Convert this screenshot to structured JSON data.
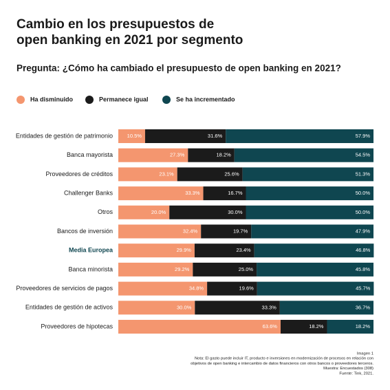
{
  "chart_data": {
    "type": "stacked_bar_horizontal",
    "title": [
      "Cambio en los presupuestos de",
      "open banking en 2021 por segmento"
    ],
    "subtitle": "Pregunta: ¿Cómo ha cambiado el presupuesto de open banking en 2021?",
    "categories": [
      "Entidades de gestión de patrimonio",
      "Banca mayorista",
      "Proveedores de créditos",
      "Challenger Banks",
      "Otros",
      "Bancos de inversión",
      "Media Europea",
      "Banca minorista",
      "Proveedores de servicios de pagos",
      "Entidades de gestión de activos",
      "Proveedores de hipotecas"
    ],
    "highlighted_category_index": 6,
    "highlight_color": "#0f4650",
    "xlim": [
      0,
      100
    ],
    "series": [
      {
        "name": "Ha disminuido",
        "color": "#f4966f",
        "values": [
          10.5,
          27.3,
          23.1,
          33.3,
          20.0,
          32.4,
          29.9,
          29.2,
          34.8,
          30.0,
          63.6
        ],
        "value_labels": [
          "10.5%",
          "27.3%",
          "23.1%",
          "33.3%",
          "20.0%",
          "32.4%",
          "29.9%",
          "29.2%",
          "34.8%",
          "30.0%",
          "63.6%"
        ]
      },
      {
        "name": "Permanece igual",
        "color": "#1b1b1b",
        "values": [
          31.6,
          18.2,
          25.6,
          16.7,
          30.0,
          19.7,
          23.4,
          25.0,
          19.6,
          33.3,
          18.2
        ],
        "value_labels": [
          "31.6%",
          "18.2%",
          "25.6%",
          "16.7%",
          "30.0%",
          "19.7%",
          "23.4%",
          "25.0%",
          "19.6%",
          "33.3%",
          "18.2%"
        ]
      },
      {
        "name": "Se ha incrementado",
        "color": "#0f4650",
        "values": [
          57.9,
          54.5,
          51.3,
          50.0,
          50.0,
          47.9,
          46.8,
          45.8,
          45.7,
          36.7,
          18.2
        ],
        "value_labels": [
          "57.9%",
          "54.5%",
          "51.3%",
          "50.0%",
          "50.0%",
          "47.9%",
          "46.8%",
          "45.8%",
          "45.7%",
          "36.7%",
          "18.2%"
        ]
      }
    ],
    "notes": [
      "Imagen 1",
      "Nota: El gasto puede incluir IT, producto e inversiones en modernización de procesos en relación con",
      "objetivos de open banking e intercambio de datos financieros con otros bancos o proveedores terceros.",
      "Muestra: Encuestados (308)",
      "Fuente: Tink, 2021."
    ]
  }
}
